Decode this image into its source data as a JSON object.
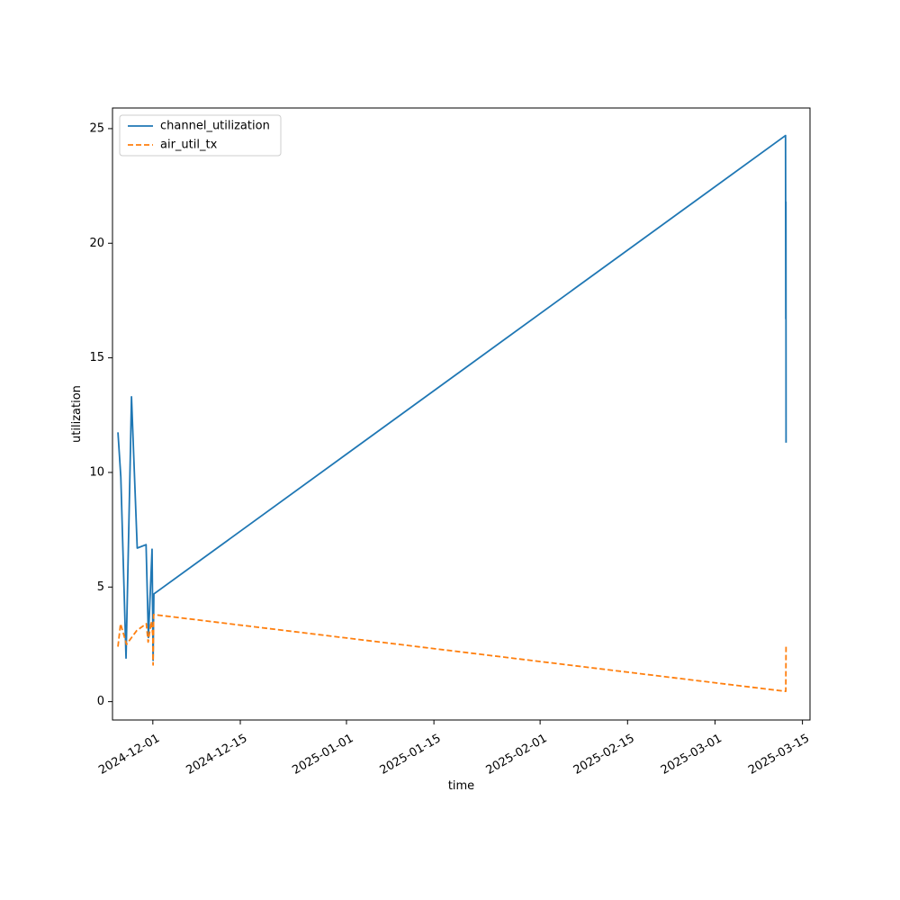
{
  "chart_data": {
    "type": "line",
    "title": "",
    "xlabel": "time",
    "ylabel": "utilization",
    "x_type": "datetime",
    "xlim": [
      "2024-11-24T13:00",
      "2025-03-16T05:00"
    ],
    "ylim": [
      -0.8,
      25.9
    ],
    "x_ticks": [
      {
        "value": "2024-12-01",
        "label": "2024-12-01"
      },
      {
        "value": "2024-12-15",
        "label": "2024-12-15"
      },
      {
        "value": "2025-01-01",
        "label": "2025-01-01"
      },
      {
        "value": "2025-01-15",
        "label": "2025-01-15"
      },
      {
        "value": "2025-02-01",
        "label": "2025-02-01"
      },
      {
        "value": "2025-02-15",
        "label": "2025-02-15"
      },
      {
        "value": "2025-03-01",
        "label": "2025-03-01"
      },
      {
        "value": "2025-03-15",
        "label": "2025-03-15"
      }
    ],
    "y_ticks": [
      {
        "value": 0,
        "label": "0"
      },
      {
        "value": 5,
        "label": "5"
      },
      {
        "value": 10,
        "label": "10"
      },
      {
        "value": 15,
        "label": "15"
      },
      {
        "value": 20,
        "label": "20"
      },
      {
        "value": 25,
        "label": "25"
      }
    ],
    "grid": false,
    "legend": {
      "position": "top-left"
    },
    "series": [
      {
        "name": "channel_utilization",
        "color": "#1f77b4",
        "style": "solid",
        "points": [
          {
            "x": "2024-11-25T10:00",
            "y": 11.75
          },
          {
            "x": "2024-11-25T21:00",
            "y": 9.8
          },
          {
            "x": "2024-11-26T17:00",
            "y": 1.9
          },
          {
            "x": "2024-11-27T10:00",
            "y": 11.0
          },
          {
            "x": "2024-11-27T14:00",
            "y": 13.3
          },
          {
            "x": "2024-11-28T12:00",
            "y": 6.7
          },
          {
            "x": "2024-11-29T22:00",
            "y": 6.85
          },
          {
            "x": "2024-11-30T07:00",
            "y": 2.8
          },
          {
            "x": "2024-11-30T21:00",
            "y": 6.65
          },
          {
            "x": "2024-12-01T01:00",
            "y": 1.8
          },
          {
            "x": "2024-12-01T04:00",
            "y": 4.7
          },
          {
            "x": "2025-03-12T07:00",
            "y": 24.7
          },
          {
            "x": "2025-03-12T08:00",
            "y": 16.7
          },
          {
            "x": "2025-03-12T08:30",
            "y": 21.8
          },
          {
            "x": "2025-03-12T09:00",
            "y": 11.3
          }
        ]
      },
      {
        "name": "air_util_tx",
        "color": "#ff7f0e",
        "style": "dashed",
        "points": [
          {
            "x": "2024-11-25T10:00",
            "y": 2.4
          },
          {
            "x": "2024-11-25T20:00",
            "y": 3.4
          },
          {
            "x": "2024-11-26T19:00",
            "y": 2.5
          },
          {
            "x": "2024-11-28T10:00",
            "y": 3.1
          },
          {
            "x": "2024-11-29T23:00",
            "y": 3.4
          },
          {
            "x": "2024-11-30T06:00",
            "y": 2.6
          },
          {
            "x": "2024-11-30T18:00",
            "y": 3.5
          },
          {
            "x": "2024-12-01T00:00",
            "y": 2.9
          },
          {
            "x": "2024-12-01T01:00",
            "y": 1.6
          },
          {
            "x": "2024-12-01T03:00",
            "y": 3.8
          },
          {
            "x": "2025-03-12T07:00",
            "y": 0.45
          },
          {
            "x": "2025-03-12T08:00",
            "y": 0.45
          },
          {
            "x": "2025-03-12T09:00",
            "y": 2.5
          }
        ]
      }
    ]
  }
}
